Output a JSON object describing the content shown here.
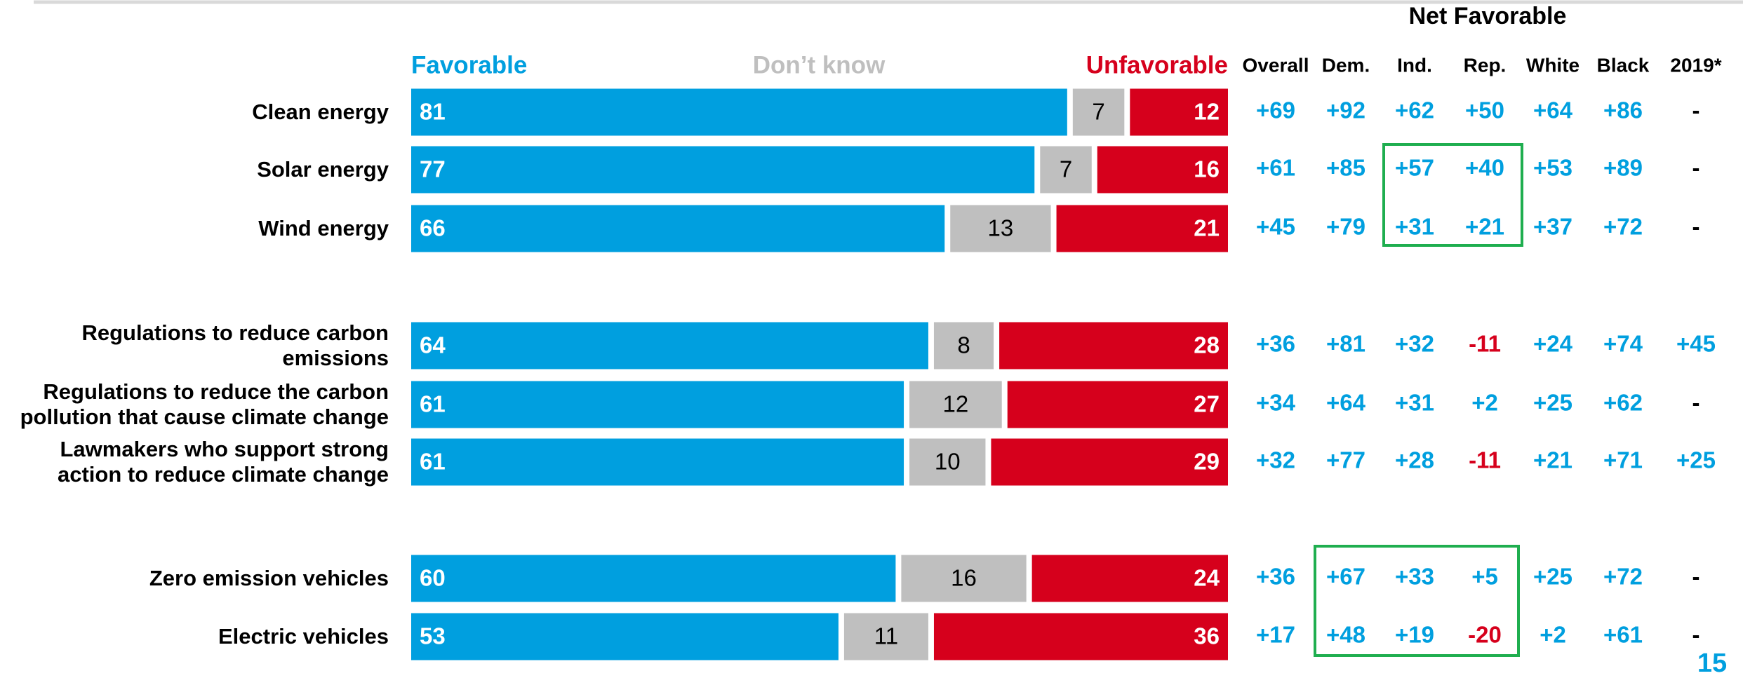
{
  "chart_data": {
    "type": "stacked_bar",
    "categories": [
      "Clean energy",
      "Solar energy",
      "Wind energy",
      "Regulations to reduce carbon\nemissions",
      "Regulations to reduce the carbon\npollution that cause climate change",
      "Lawmakers who support strong\naction to reduce climate change",
      "Zero emission vehicles",
      "Electric vehicles"
    ],
    "series": [
      {
        "name": "Favorable",
        "color": "#009fdf",
        "values": [
          81,
          77,
          66,
          64,
          61,
          61,
          60,
          53
        ]
      },
      {
        "name": "Don’t know",
        "color": "#bfbfbf",
        "values": [
          7,
          7,
          13,
          8,
          12,
          10,
          16,
          11
        ]
      },
      {
        "name": "Unfavorable",
        "color": "#d6001c",
        "values": [
          12,
          16,
          21,
          28,
          27,
          29,
          24,
          36
        ]
      }
    ],
    "xlim": [
      0,
      100
    ],
    "table": {
      "title": "Net Favorable",
      "columns": [
        "Overall",
        "Dem.",
        "Ind.",
        "Rep.",
        "White",
        "Black",
        "2019*"
      ],
      "rows": [
        [
          "+69",
          "+92",
          "+62",
          "+50",
          "+64",
          "+86",
          "-"
        ],
        [
          "+61",
          "+85",
          "+57",
          "+40",
          "+53",
          "+89",
          "-"
        ],
        [
          "+45",
          "+79",
          "+31",
          "+21",
          "+37",
          "+72",
          "-"
        ],
        [
          "+36",
          "+81",
          "+32",
          "-11",
          "+24",
          "+74",
          "+45"
        ],
        [
          "+34",
          "+64",
          "+31",
          "+2",
          "+25",
          "+62",
          "-"
        ],
        [
          "+32",
          "+77",
          "+28",
          "-11",
          "+21",
          "+71",
          "+25"
        ],
        [
          "+36",
          "+67",
          "+33",
          "+5",
          "+25",
          "+72",
          "-"
        ],
        [
          "+17",
          "+48",
          "+19",
          "-20",
          "+2",
          "+61",
          "-"
        ]
      ]
    },
    "page_number": "15"
  }
}
